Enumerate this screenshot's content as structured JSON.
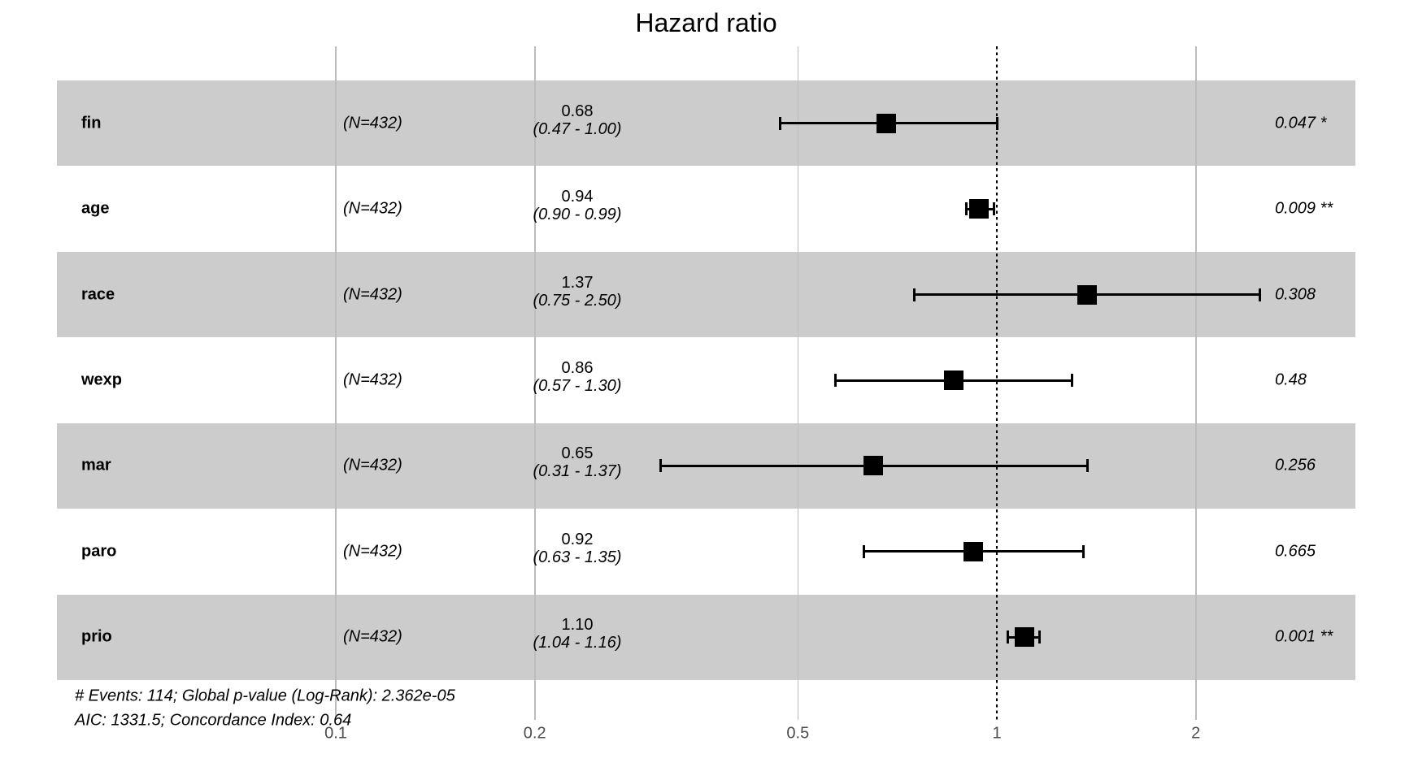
{
  "title": "Hazard ratio",
  "footer": {
    "line1": "# Events: 114; Global p-value (Log-Rank): 2.362e-05",
    "line2": "AIC: 1331.5; Concordance Index: 0.64"
  },
  "colors": {
    "band_gray": "#cccccc",
    "gridline": "#bdbdbd",
    "reference_line": "#000000",
    "marker": "#000000",
    "tick_label": "#4d4d4d",
    "text": "#000000"
  },
  "chart_data": {
    "type": "forest",
    "title": "Hazard ratio",
    "x_scale": "log10",
    "x_ticks": [
      0.1,
      0.2,
      0.5,
      1,
      2
    ],
    "x_tick_labels": [
      "0.1",
      "0.2",
      "0.5",
      "1",
      "2"
    ],
    "xlim": [
      0.08,
      3.5
    ],
    "reference_line": 1,
    "grid": "vertical-only",
    "rows": [
      {
        "variable": "fin",
        "n_label": "(N=432)",
        "estimate": 0.68,
        "ci_low": 0.47,
        "ci_high": 1.0,
        "estimate_label": "0.68",
        "ci_label": "(0.47 - 1.00)",
        "p_label": "0.047 *",
        "band": "gray"
      },
      {
        "variable": "age",
        "n_label": "(N=432)",
        "estimate": 0.94,
        "ci_low": 0.9,
        "ci_high": 0.99,
        "estimate_label": "0.94",
        "ci_label": "(0.90 - 0.99)",
        "p_label": "0.009 **",
        "band": "white"
      },
      {
        "variable": "race",
        "n_label": "(N=432)",
        "estimate": 1.37,
        "ci_low": 0.75,
        "ci_high": 2.5,
        "estimate_label": "1.37",
        "ci_label": "(0.75 - 2.50)",
        "p_label": "0.308",
        "band": "gray"
      },
      {
        "variable": "wexp",
        "n_label": "(N=432)",
        "estimate": 0.86,
        "ci_low": 0.57,
        "ci_high": 1.3,
        "estimate_label": "0.86",
        "ci_label": "(0.57 - 1.30)",
        "p_label": "0.48",
        "band": "white"
      },
      {
        "variable": "mar",
        "n_label": "(N=432)",
        "estimate": 0.65,
        "ci_low": 0.31,
        "ci_high": 1.37,
        "estimate_label": "0.65",
        "ci_label": "(0.31 - 1.37)",
        "p_label": "0.256",
        "band": "gray"
      },
      {
        "variable": "paro",
        "n_label": "(N=432)",
        "estimate": 0.92,
        "ci_low": 0.63,
        "ci_high": 1.35,
        "estimate_label": "0.92",
        "ci_label": "(0.63 - 1.35)",
        "p_label": "0.665",
        "band": "white"
      },
      {
        "variable": "prio",
        "n_label": "(N=432)",
        "estimate": 1.1,
        "ci_low": 1.04,
        "ci_high": 1.16,
        "estimate_label": "1.10",
        "ci_label": "(1.04 - 1.16)",
        "p_label": "0.001 **",
        "band": "gray"
      }
    ],
    "footer": [
      "# Events: 114; Global p-value (Log-Rank): 2.362e-05",
      "AIC: 1331.5; Concordance Index: 0.64"
    ]
  }
}
